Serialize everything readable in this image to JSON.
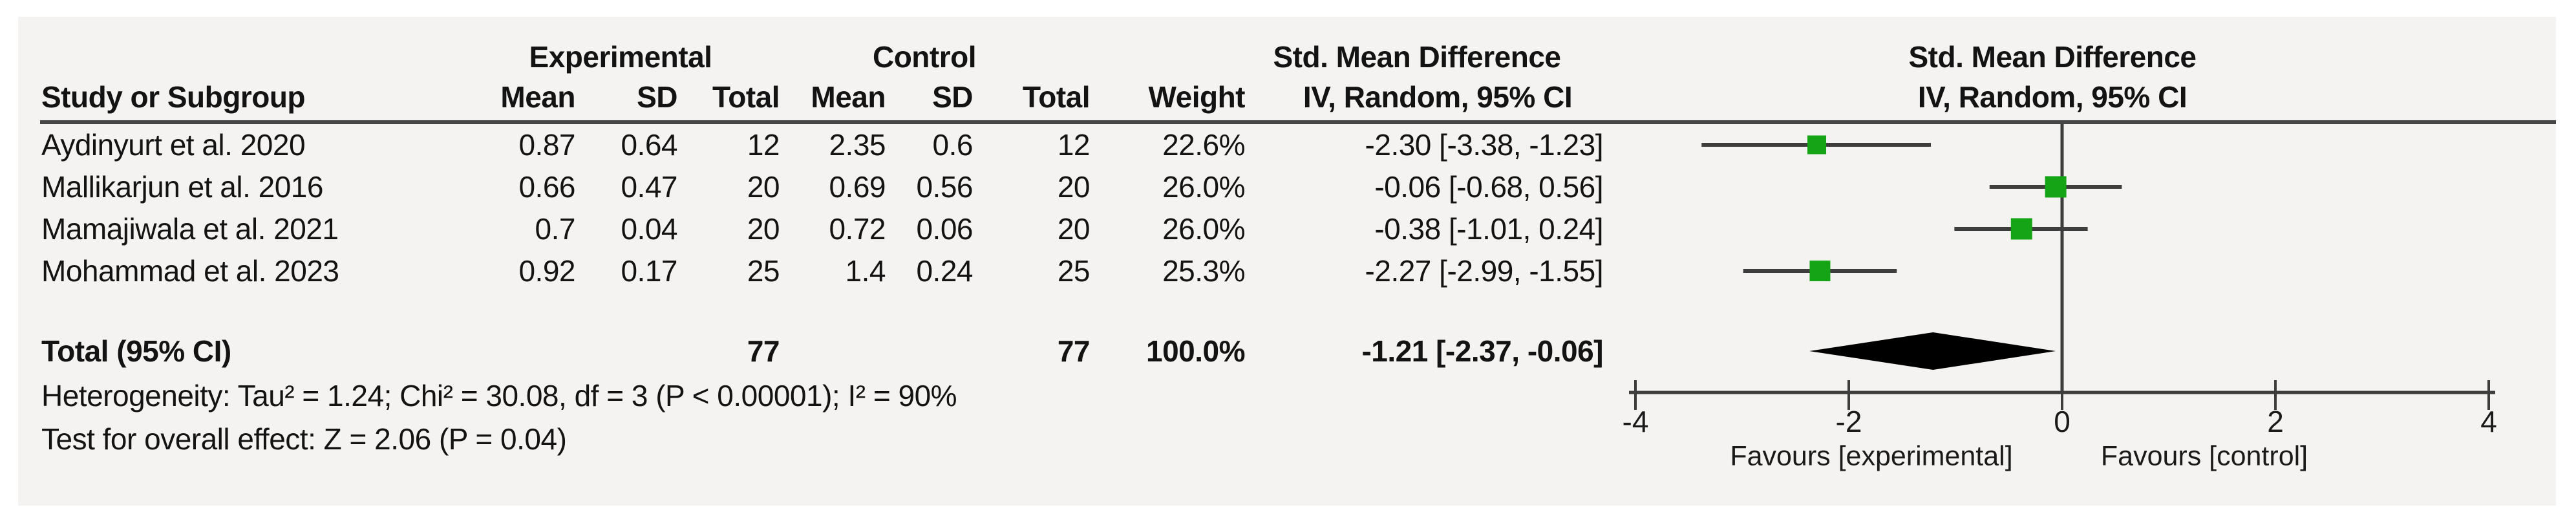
{
  "table": {
    "group_headers": {
      "experimental": "Experimental",
      "control": "Control",
      "smd_left": "Std. Mean Difference",
      "smd_right": "Std. Mean Difference"
    },
    "column_headers": {
      "study": "Study or Subgroup",
      "mean": "Mean",
      "sd": "SD",
      "total": "Total",
      "weight": "Weight",
      "iv": "IV, Random, 95% CI"
    },
    "rows": [
      {
        "study": "Aydinyurt et al. 2020",
        "mean_e": "0.87",
        "sd_e": "0.64",
        "total_e": "12",
        "mean_c": "2.35",
        "sd_c": "0.6",
        "total_c": "12",
        "weight": "22.6%",
        "ci": "-2.30 [-3.38, -1.23]"
      },
      {
        "study": "Mallikarjun et al. 2016",
        "mean_e": "0.66",
        "sd_e": "0.47",
        "total_e": "20",
        "mean_c": "0.69",
        "sd_c": "0.56",
        "total_c": "20",
        "weight": "26.0%",
        "ci": "-0.06 [-0.68, 0.56]"
      },
      {
        "study": "Mamajiwala et al. 2021",
        "mean_e": "0.7",
        "sd_e": "0.04",
        "total_e": "20",
        "mean_c": "0.72",
        "sd_c": "0.06",
        "total_c": "20",
        "weight": "26.0%",
        "ci": "-0.38 [-1.01, 0.24]"
      },
      {
        "study": "Mohammad et al. 2023",
        "mean_e": "0.92",
        "sd_e": "0.17",
        "total_e": "25",
        "mean_c": "1.4",
        "sd_c": "0.24",
        "total_c": "25",
        "weight": "25.3%",
        "ci": "-2.27 [-2.99, -1.55]"
      }
    ],
    "total_row": {
      "label": "Total (95% CI)",
      "total_e": "77",
      "total_c": "77",
      "weight": "100.0%",
      "ci": "-1.21 [-2.37, -0.06]"
    },
    "footnotes": {
      "heterogeneity": "Heterogeneity: Tau² = 1.24; Chi² = 30.08, df = 3 (P < 0.00001); I² = 90%",
      "overall_effect": "Test for overall effect: Z = 2.06 (P = 0.04)"
    }
  },
  "chart_data": {
    "type": "forest",
    "effect_measure": "Std. Mean Difference",
    "model": "IV, Random, 95% CI",
    "studies": [
      {
        "name": "Aydinyurt et al. 2020",
        "smd": -2.3,
        "ci_low": -3.38,
        "ci_high": -1.23,
        "weight_pct": 22.6
      },
      {
        "name": "Mallikarjun et al. 2016",
        "smd": -0.06,
        "ci_low": -0.68,
        "ci_high": 0.56,
        "weight_pct": 26.0
      },
      {
        "name": "Mamajiwala et al. 2021",
        "smd": -0.38,
        "ci_low": -1.01,
        "ci_high": 0.24,
        "weight_pct": 26.0
      },
      {
        "name": "Mohammad et al. 2023",
        "smd": -2.27,
        "ci_low": -2.99,
        "ci_high": -1.55,
        "weight_pct": 25.3
      }
    ],
    "total": {
      "smd": -1.21,
      "ci_low": -2.37,
      "ci_high": -0.06,
      "weight_pct": 100.0
    },
    "axis": {
      "min": -4,
      "max": 4,
      "ticks": [
        -4,
        -2,
        0,
        2,
        4
      ],
      "label_left": "Favours [experimental]",
      "label_right": "Favours [control]"
    },
    "colors": {
      "square": "#15a415",
      "diamond": "#000000",
      "ci_line": "#3d3d3d",
      "axis_line": "#3d3d3d",
      "panel_bg": "#f4f3f1"
    }
  }
}
